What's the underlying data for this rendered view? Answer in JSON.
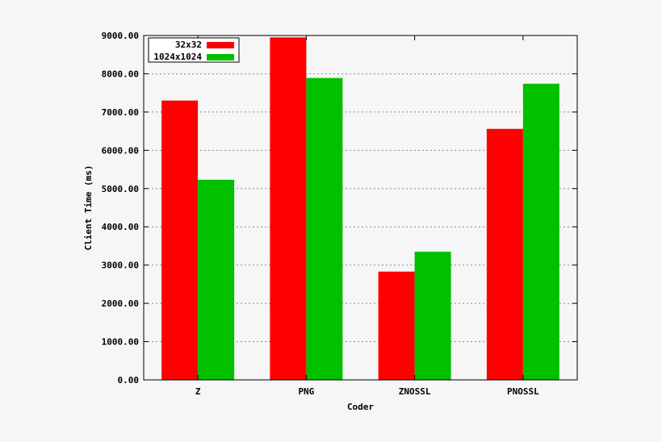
{
  "chart_data": {
    "type": "bar",
    "categories": [
      "Z",
      "PNG",
      "ZNOSSL",
      "PNOSSL"
    ],
    "series": [
      {
        "name": "32x32",
        "color": "#ff0000",
        "values": [
          7300,
          8950,
          2830,
          6560
        ]
      },
      {
        "name": "1024x1024",
        "color": "#00c000",
        "values": [
          5230,
          7890,
          3350,
          7740
        ]
      }
    ],
    "y_ticks": [
      "0.00",
      "1000.00",
      "2000.00",
      "3000.00",
      "4000.00",
      "5000.00",
      "6000.00",
      "7000.00",
      "8000.00",
      "9000.00"
    ],
    "xlabel": "Coder",
    "ylabel": "Client Time (ms)",
    "ylim": [
      0,
      9000
    ],
    "grid": true,
    "legend_position": "top-left"
  }
}
